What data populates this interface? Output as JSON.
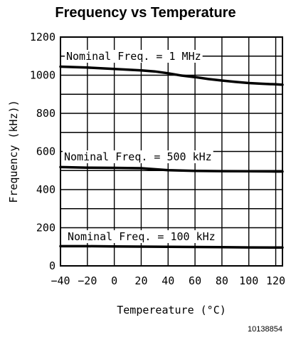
{
  "chart_data": {
    "type": "line",
    "title": "Frequency vs Temperature",
    "xlabel": "Tempereature (°C)",
    "ylabel": "Frequency (kHz))",
    "xlim": [
      -40,
      125
    ],
    "ylim": [
      0,
      1200
    ],
    "x_ticks": [
      -40,
      -20,
      0,
      20,
      40,
      60,
      80,
      100,
      120
    ],
    "y_ticks": [
      0,
      200,
      400,
      600,
      800,
      1000,
      1200
    ],
    "grid": true,
    "series": [
      {
        "name": "Nominal Freq. = 1 MHz",
        "x": [
          -40,
          -20,
          0,
          20,
          30,
          40,
          50,
          60,
          70,
          80,
          90,
          100,
          110,
          120,
          125
        ],
        "y": [
          1045,
          1040,
          1033,
          1025,
          1020,
          1010,
          998,
          990,
          980,
          972,
          965,
          959,
          955,
          952,
          950
        ]
      },
      {
        "name": "Nominal Freq. = 500 kHz",
        "x": [
          -40,
          -20,
          0,
          20,
          30,
          40,
          50,
          60,
          80,
          100,
          120,
          125
        ],
        "y": [
          518,
          515,
          514,
          512,
          507,
          502,
          500,
          498,
          497,
          496,
          495,
          495
        ]
      },
      {
        "name": "Nominal Freq. = 100 kHz",
        "x": [
          -40,
          -20,
          0,
          20,
          40,
          60,
          80,
          100,
          120,
          125
        ],
        "y": [
          103,
          103,
          102,
          101,
          100,
          99,
          98,
          97,
          96,
          96
        ]
      }
    ],
    "figure_code": "10138854"
  }
}
